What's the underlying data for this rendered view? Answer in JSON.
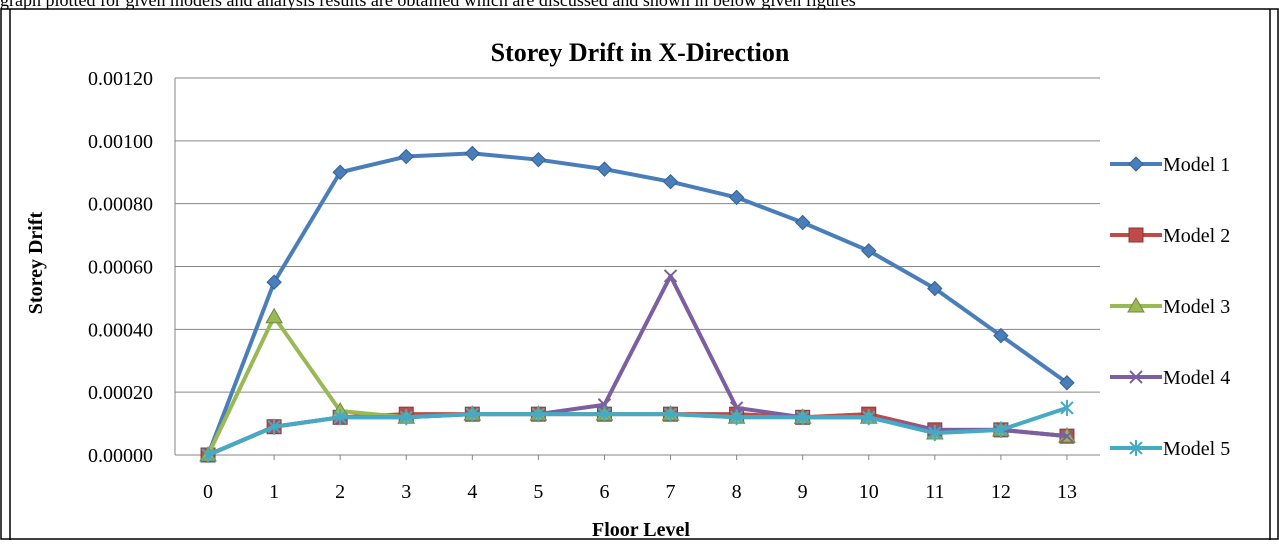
{
  "caption_fragment": "graph plotted for given models and analysis results are obtained which are discussed and shown in below given figures",
  "chart_data": {
    "type": "line",
    "title": "Storey Drift in X-Direction",
    "xlabel": "Floor Level",
    "ylabel": "Storey Drift",
    "categories": [
      "0",
      "1",
      "2",
      "3",
      "4",
      "5",
      "6",
      "7",
      "8",
      "9",
      "10",
      "11",
      "12",
      "13"
    ],
    "y_ticks": [
      "0.00000",
      "0.00020",
      "0.00040",
      "0.00060",
      "0.00080",
      "0.00100",
      "0.00120"
    ],
    "ylim": [
      0,
      0.0012
    ],
    "grid": "horizontal",
    "legend_position": "right",
    "series": [
      {
        "name": "Model 1",
        "color": "#4a7ebb",
        "marker": "diamond",
        "values": [
          0,
          0.00055,
          0.0009,
          0.00095,
          0.00096,
          0.00094,
          0.00091,
          0.00087,
          0.00082,
          0.00074,
          0.00065,
          0.00053,
          0.00038,
          0.00023
        ]
      },
      {
        "name": "Model 2",
        "color": "#be4b48",
        "marker": "square",
        "values": [
          0,
          9e-05,
          0.00012,
          0.00013,
          0.00013,
          0.00013,
          0.00013,
          0.00013,
          0.00013,
          0.00012,
          0.00013,
          8e-05,
          8e-05,
          6e-05
        ]
      },
      {
        "name": "Model 3",
        "color": "#98b954",
        "marker": "triangle",
        "values": [
          0,
          0.00044,
          0.00014,
          0.00012,
          0.00013,
          0.00013,
          0.00013,
          0.00013,
          0.00012,
          0.00012,
          0.00012,
          7e-05,
          8e-05,
          6e-05
        ]
      },
      {
        "name": "Model 4",
        "color": "#7d5fa0",
        "marker": "x",
        "values": [
          0,
          9e-05,
          0.00012,
          0.00012,
          0.00013,
          0.00013,
          0.00016,
          0.00057,
          0.00015,
          0.00012,
          0.00012,
          8e-05,
          8e-05,
          6e-05
        ]
      },
      {
        "name": "Model 5",
        "color": "#46aac5",
        "marker": "star",
        "values": [
          0,
          9e-05,
          0.00012,
          0.00012,
          0.00013,
          0.00013,
          0.00013,
          0.00013,
          0.00012,
          0.00012,
          0.00012,
          7e-05,
          8e-05,
          0.00015
        ]
      }
    ]
  }
}
